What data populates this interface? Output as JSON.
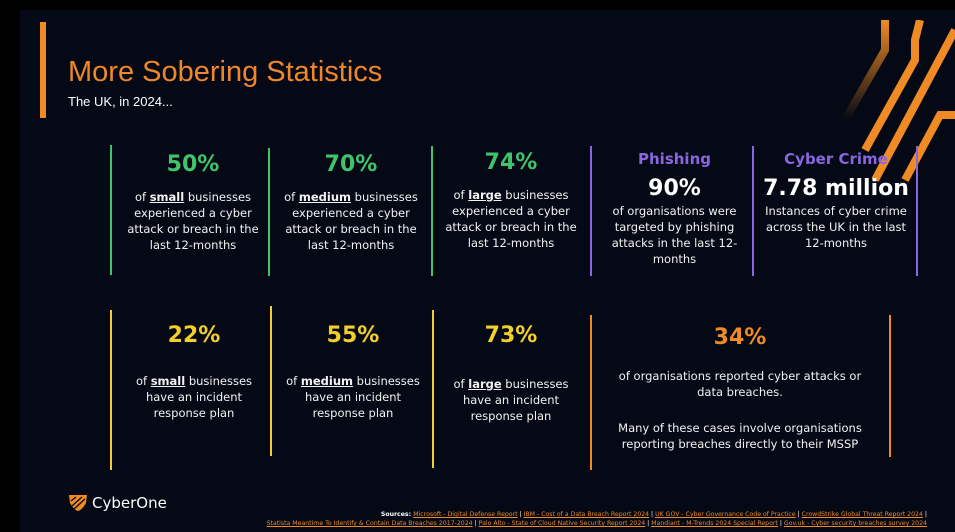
{
  "title": "More Sobering Statistics",
  "subtitle": "The UK, in 2024...",
  "colors": {
    "green": "#3fc46b",
    "yellow": "#f3cf2c",
    "orange": "#f08a24",
    "purple": "#8a66e0"
  },
  "top_row": [
    {
      "value": "50%",
      "pre": "of ",
      "bold": "small",
      "post": " businesses experienced a cyber attack or breach in the last 12-months"
    },
    {
      "value": "70%",
      "pre": "of ",
      "bold": "medium",
      "post": " businesses experienced a cyber attack or breach in the last 12-months"
    },
    {
      "value": "74%",
      "pre": "of ",
      "bold": "large",
      "post": " businesses experienced a cyber attack or breach in the last 12-months"
    }
  ],
  "phishing": {
    "header": "Phishing",
    "value": "90%",
    "desc": "of organisations were targeted by phishing attacks in the last 12-months"
  },
  "cyber_crime": {
    "header": "Cyber Crime",
    "value": "7.78 million",
    "desc": "Instances of cyber crime across the UK in the last 12-months"
  },
  "bottom_row": [
    {
      "value": "22%",
      "pre": "of ",
      "bold": "small",
      "post": " businesses have an incident response plan"
    },
    {
      "value": "55%",
      "pre": "of ",
      "bold": "medium",
      "post": " businesses have an incident response plan"
    },
    {
      "value": "73%",
      "pre": "of ",
      "bold": "large",
      "post": " businesses have an incident response plan"
    }
  ],
  "mssp": {
    "value": "34%",
    "desc1": "of organisations reported cyber attacks or data breaches.",
    "desc2": "Many of these cases involve organisations reporting breaches directly to their MSSP"
  },
  "logo": "CyberOne",
  "sources": {
    "label": "Sources: ",
    "links": [
      "Microsoft - Digital Defense Report",
      "IBM - Cost of a Data Breach Report 2024",
      "UK GOV - Cyber Governance Code of Practice",
      "CrowdStrike Global Threat Report 2024",
      "Statista Meantime To Identify & Contain Data Breaches 2017-2024",
      "Palo Alto - State of Cloud Native Security Report 2024",
      "Mandiant - M-Trends 2024 Special Report",
      "Gov.uk - Cyber security breaches survey 2024"
    ]
  }
}
